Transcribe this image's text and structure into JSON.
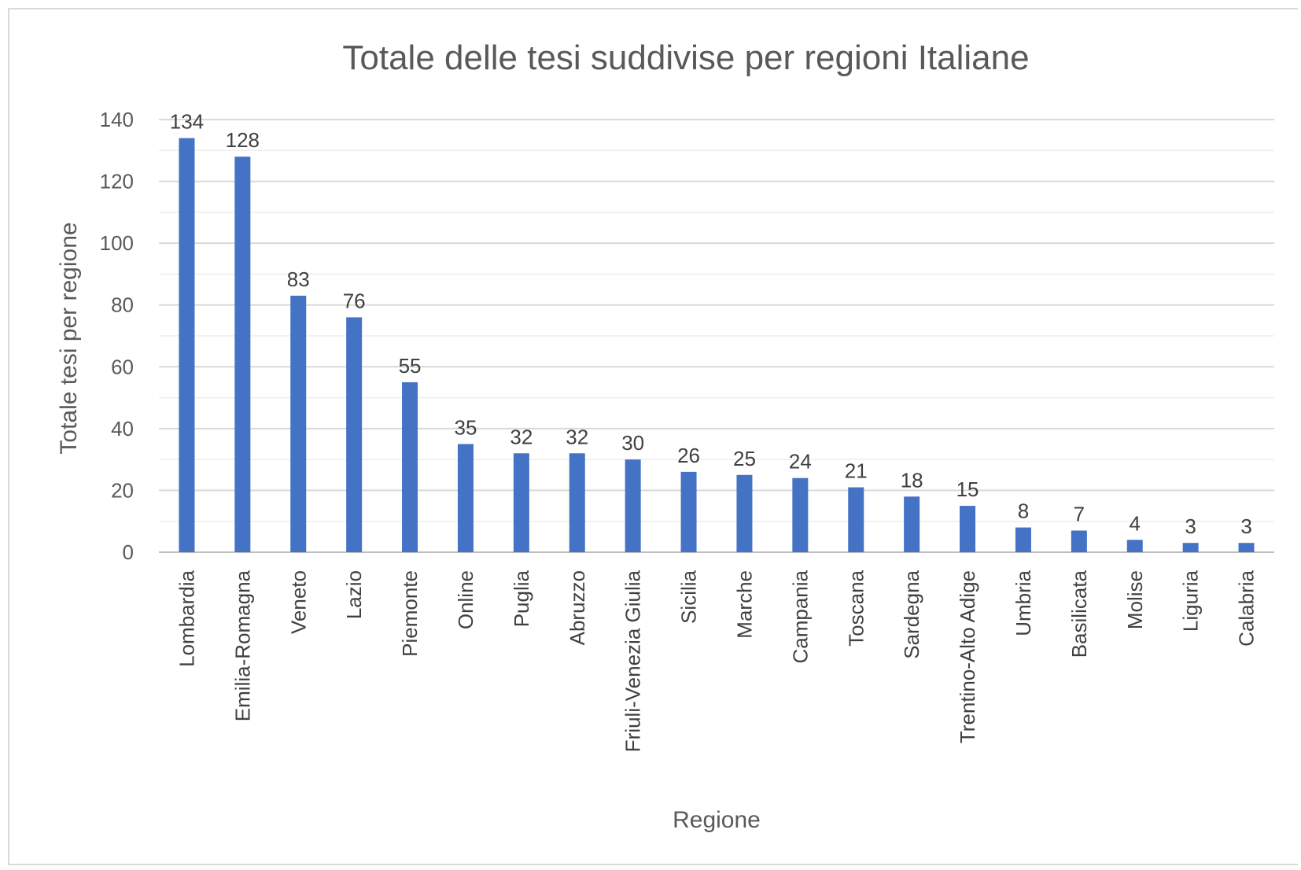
{
  "chart_data": {
    "type": "bar",
    "title": "Totale delle tesi suddivise per regioni Italiane",
    "xlabel": "Regione",
    "ylabel": "Totale tesi per regione",
    "ylim": [
      0,
      140
    ],
    "yticks": [
      0,
      20,
      40,
      60,
      80,
      100,
      120,
      140
    ],
    "grid": true,
    "legend": "none",
    "bar_color": "#4472C4",
    "categories": [
      "Lombardia",
      "Emilia-Romagna",
      "Veneto",
      "Lazio",
      "Piemonte",
      "Online",
      "Puglia",
      "Abruzzo",
      "Friuli-Venezia Giulia",
      "Sicilia",
      "Marche",
      "Campania",
      "Toscana",
      "Sardegna",
      "Trentino-Alto Adige",
      "Umbria",
      "Basilicata",
      "Molise",
      "Liguria",
      "Calabria"
    ],
    "values": [
      134,
      128,
      83,
      76,
      55,
      35,
      32,
      32,
      30,
      26,
      25,
      24,
      21,
      18,
      15,
      8,
      7,
      4,
      3,
      3
    ]
  }
}
